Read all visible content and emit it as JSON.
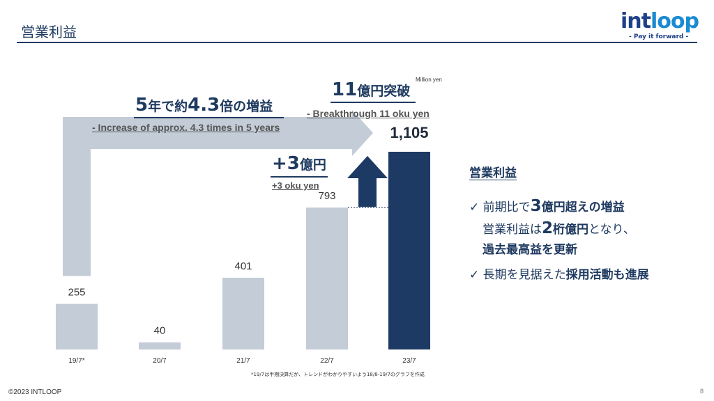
{
  "slide": {
    "title": "営業利益",
    "footer": "©2023 INTLOOP",
    "page_number": "8",
    "footnote": "*19/7は半期決算だが、トレンドがわかりやすいよう18/8-19/7のグラフを作成"
  },
  "logo": {
    "word_a": "int",
    "word_b": "loop",
    "tagline": "- Pay it forward -"
  },
  "annotations": {
    "growth_pre": "5",
    "growth_mid": "年で約",
    "growth_num": "4.3",
    "growth_post": "倍の増益",
    "growth_en": "- Increase of approx. 4.3 times in 5 years",
    "breakthrough_num": "11",
    "breakthrough_jp": "億円突破",
    "breakthrough_en": "- Breakthrough 11 oku yen",
    "plus_num": "+3",
    "plus_jp": "億円",
    "plus_en": "+3 oku yen"
  },
  "side": {
    "heading": "営業利益",
    "b1_check": "✓",
    "b1_a": "前期比で",
    "b1_num": "3",
    "b1_b": "億円超えの増益",
    "b2_a": "営業利益は",
    "b2_num": "2",
    "b2_b": "桁億円",
    "b2_c": "となり、",
    "b3": "過去最高益を更新",
    "b4_check": "✓",
    "b4_a": "長期を見据えた",
    "b4_b": "採用活動も進展"
  },
  "chart_data": {
    "type": "bar",
    "units_label": "Million yen",
    "categories": [
      "19/7*",
      "20/7",
      "21/7",
      "22/7",
      "23/7"
    ],
    "values": [
      255,
      40,
      401,
      793,
      1105
    ],
    "value_labels": [
      "255",
      "40",
      "401",
      "793",
      "1,105"
    ],
    "ylim": [
      0,
      1105
    ],
    "colors": {
      "bar": "#c3ccd7",
      "highlight": "#1c3a64",
      "arrow": "#c3ccd7",
      "up_arrow": "#1c3a64"
    }
  }
}
